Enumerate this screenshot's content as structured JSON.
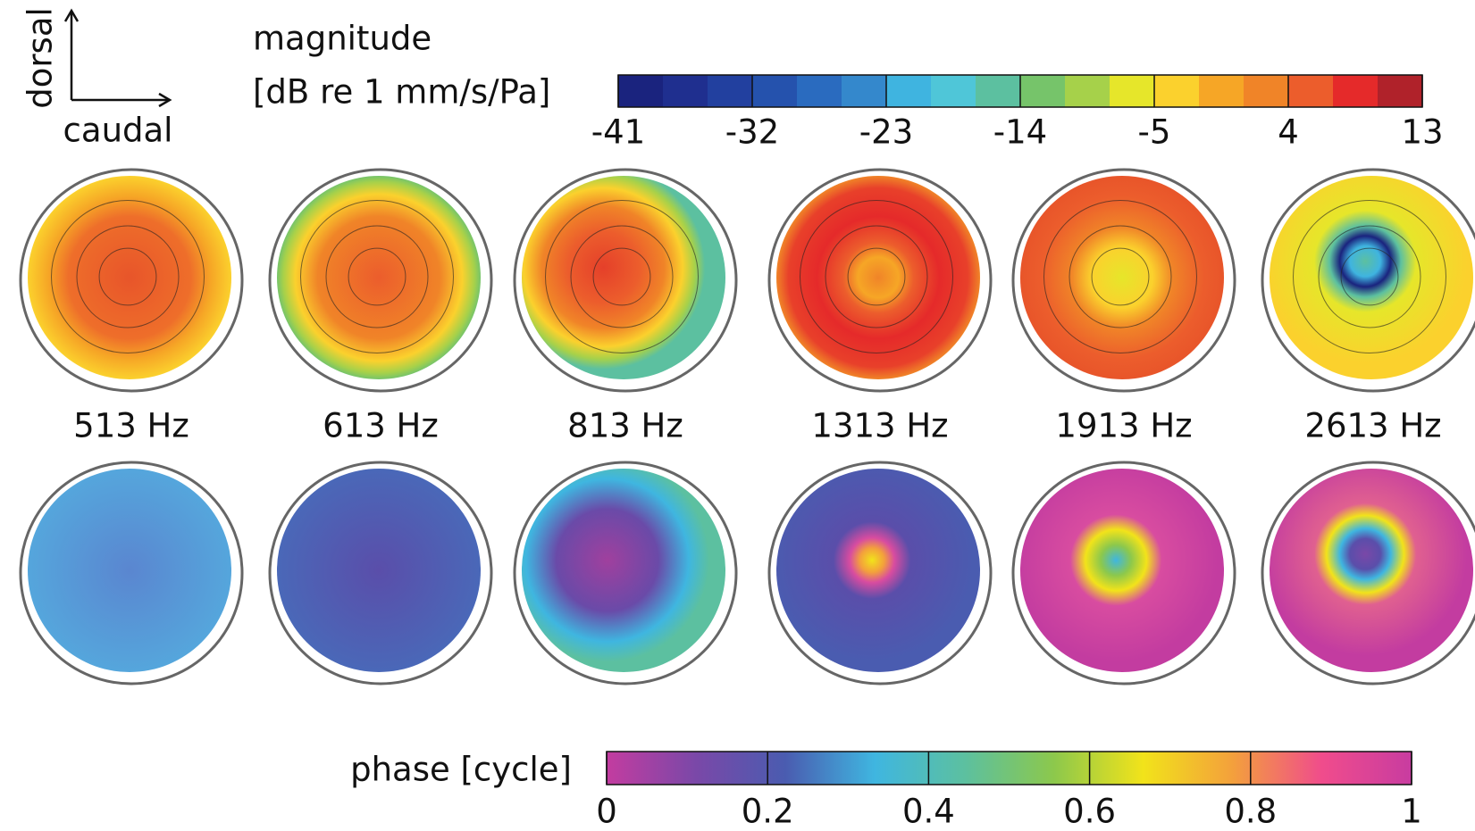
{
  "orientation": {
    "vertical": "dorsal",
    "horizontal": "caudal"
  },
  "magnitude_colorbar": {
    "title": [
      "magnitude",
      "[dB re 1 mm/s/Pa]"
    ],
    "lim": [
      -41,
      13
    ],
    "ticks": [
      -41,
      -32,
      -23,
      -14,
      -5,
      4,
      13
    ],
    "colors": [
      "#1a237e",
      "#1f2f8f",
      "#22409f",
      "#2552ad",
      "#2a6bbf",
      "#3488cc",
      "#3fb4e0",
      "#4fc6d8",
      "#5cc0a0",
      "#76c46a",
      "#a6d14a",
      "#e6e62a",
      "#fbd12d",
      "#f6a626",
      "#f08428",
      "#ec5d2c",
      "#e52a2a",
      "#b0222a"
    ]
  },
  "frequencies": [
    "513 Hz",
    "613 Hz",
    "813 Hz",
    "1313 Hz",
    "1913 Hz",
    "2613 Hz"
  ],
  "phase_colorbar": {
    "title": "phase [cycle]",
    "lim": [
      0,
      1
    ],
    "ticks": [
      0,
      0.2,
      0.4,
      0.6,
      0.8,
      1
    ],
    "colors": [
      "#c33ca0",
      "#7a48a8",
      "#4a5cb0",
      "#3fb6e0",
      "#5cc0a0",
      "#8cc84c",
      "#f2e31a",
      "#f3a03c",
      "#f04c8c",
      "#c83ca0"
    ]
  }
}
